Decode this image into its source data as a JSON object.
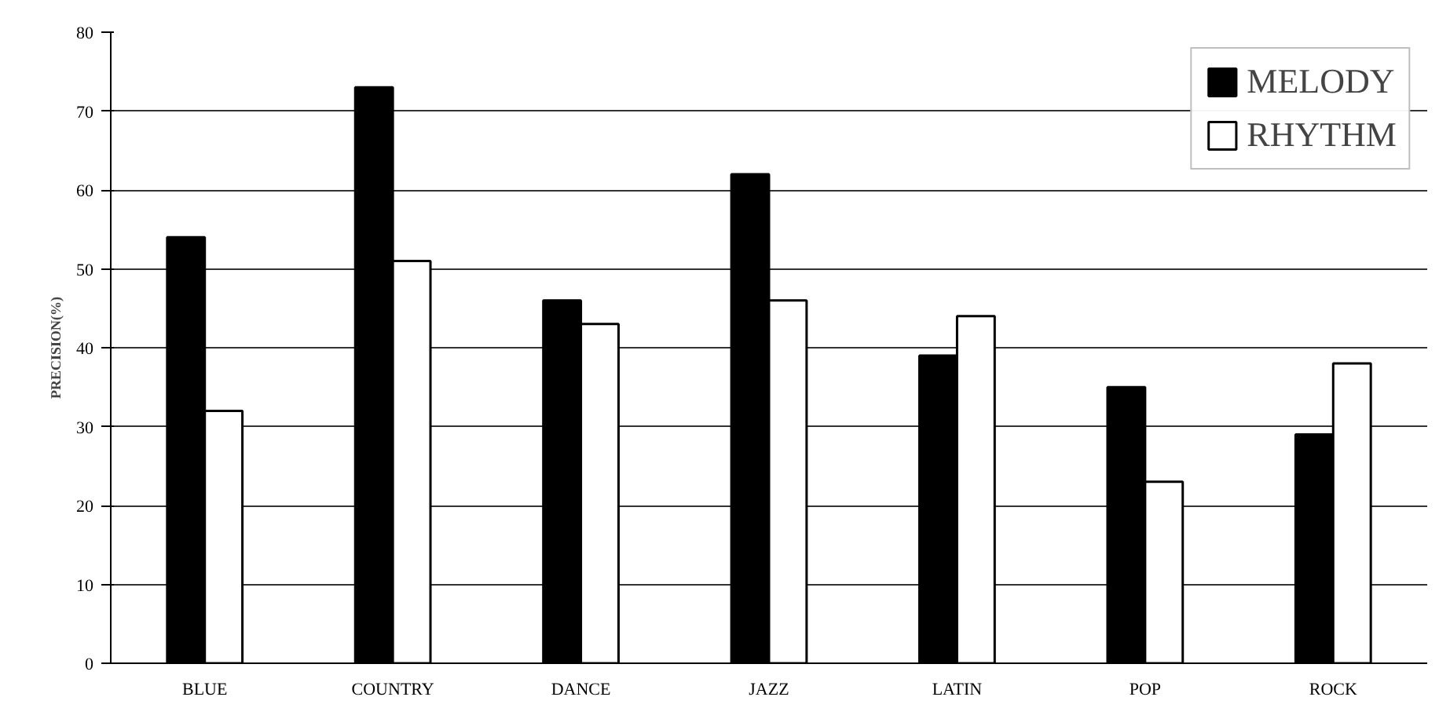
{
  "chart_data": {
    "type": "bar",
    "ylabel": "PRECISION(%)",
    "categories": [
      "BLUE",
      "COUNTRY",
      "DANCE",
      "JAZZ",
      "LATIN",
      "POP",
      "ROCK"
    ],
    "series": [
      {
        "name": "MELODY",
        "color": "#000000",
        "values": [
          54,
          73,
          46,
          62,
          39,
          35,
          29
        ]
      },
      {
        "name": "RHYTHM",
        "color": "#ffffff",
        "values": [
          32,
          51,
          43,
          46,
          44,
          23,
          38
        ]
      }
    ],
    "ylim": [
      0,
      80
    ],
    "yticks": [
      0,
      10,
      20,
      30,
      40,
      50,
      60,
      70,
      80
    ],
    "grid": "y",
    "legend": "top right"
  }
}
